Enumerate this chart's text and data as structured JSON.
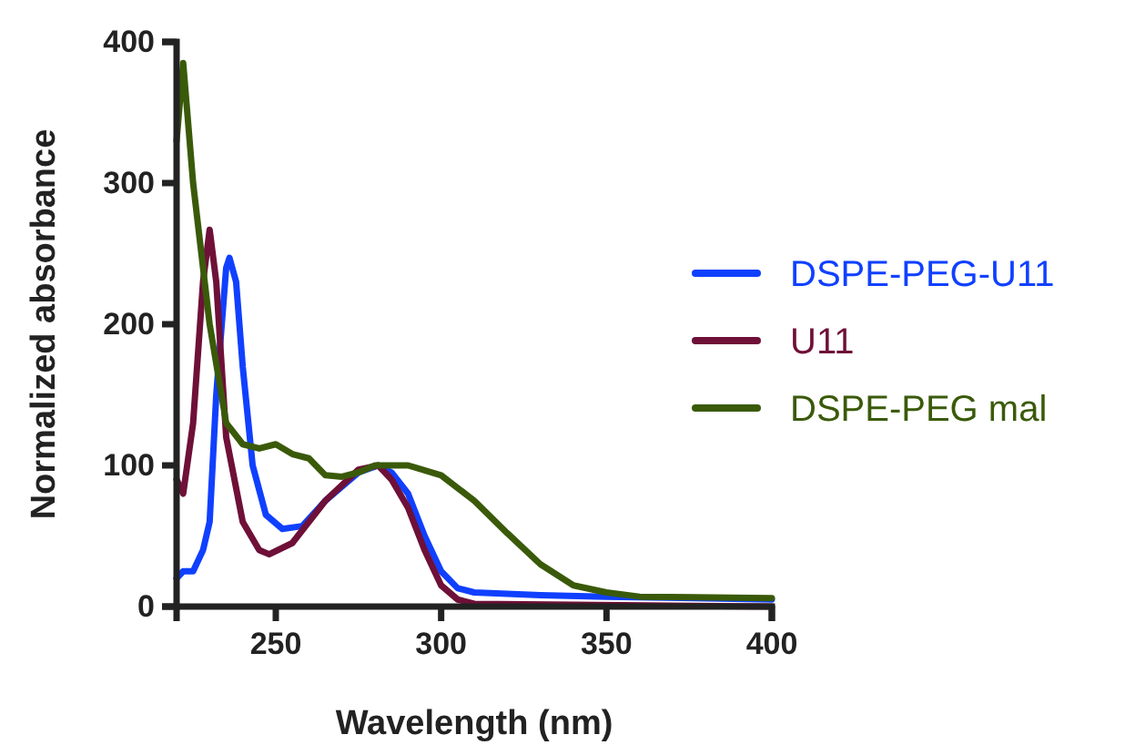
{
  "chart_data": {
    "type": "line",
    "xlabel": "Wavelength (nm)",
    "ylabel": "Normalized absorbance",
    "xlim": [
      220,
      400
    ],
    "ylim": [
      0,
      400
    ],
    "xticks": [
      250,
      300,
      350,
      400
    ],
    "yticks": [
      0,
      100,
      200,
      300,
      400
    ],
    "legend": "right",
    "grid": false,
    "marker": "none",
    "line_style": "solid",
    "series": [
      {
        "name": "DSPE-PEG-U11",
        "color": "#1040ff",
        "x": [
          220,
          222,
          225,
          228,
          230,
          232,
          235,
          236,
          238,
          240,
          243,
          247,
          252,
          258,
          265,
          275,
          281,
          285,
          290,
          295,
          300,
          305,
          310,
          330,
          350,
          400
        ],
        "values": [
          20,
          25,
          25,
          40,
          60,
          150,
          240,
          247,
          230,
          170,
          100,
          65,
          55,
          57,
          75,
          95,
          100,
          95,
          80,
          50,
          25,
          13,
          10,
          8,
          7,
          5
        ]
      },
      {
        "name": "U11",
        "color": "#6e1038",
        "x": [
          220,
          222,
          225,
          228,
          230,
          232,
          235,
          240,
          245,
          248,
          255,
          265,
          275,
          281,
          285,
          290,
          295,
          300,
          305,
          310,
          400
        ],
        "values": [
          90,
          80,
          130,
          230,
          267,
          230,
          120,
          60,
          40,
          37,
          45,
          75,
          97,
          100,
          90,
          70,
          40,
          15,
          5,
          2,
          0
        ]
      },
      {
        "name": "DSPE-PEG mal",
        "color": "#3a5a0a",
        "x": [
          220,
          222,
          225,
          230,
          235,
          240,
          245,
          250,
          255,
          260,
          265,
          270,
          275,
          280,
          290,
          300,
          310,
          320,
          330,
          340,
          350,
          360,
          400
        ],
        "values": [
          330,
          385,
          300,
          200,
          130,
          115,
          112,
          115,
          108,
          105,
          93,
          92,
          95,
          100,
          100,
          93,
          75,
          52,
          30,
          15,
          10,
          7,
          6
        ]
      }
    ]
  }
}
